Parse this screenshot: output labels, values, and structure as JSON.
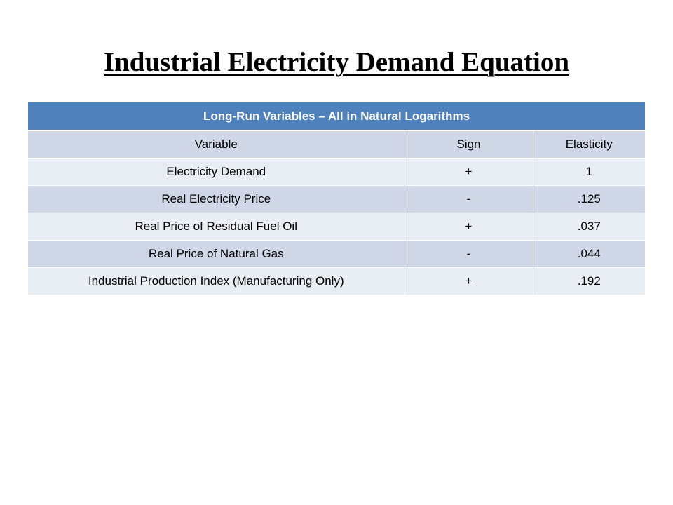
{
  "title": "Industrial Electricity Demand Equation",
  "table": {
    "caption": "Long-Run Variables – All in Natural Logarithms",
    "headers": [
      "Variable",
      "Sign",
      "Elasticity"
    ],
    "rows": [
      [
        "Electricity Demand",
        "+",
        "1"
      ],
      [
        "Real Electricity Price",
        "-",
        ".125"
      ],
      [
        "Real Price of Residual Fuel Oil",
        "+",
        ".037"
      ],
      [
        "Real Price of Natural Gas",
        "-",
        ".044"
      ],
      [
        "Industrial Production Index (Manufacturing Only)",
        "+",
        ".192"
      ]
    ]
  },
  "colors": {
    "header_band": "#4f81bd",
    "row_dark": "#d0d8e8",
    "row_light": "#e9edf4"
  }
}
